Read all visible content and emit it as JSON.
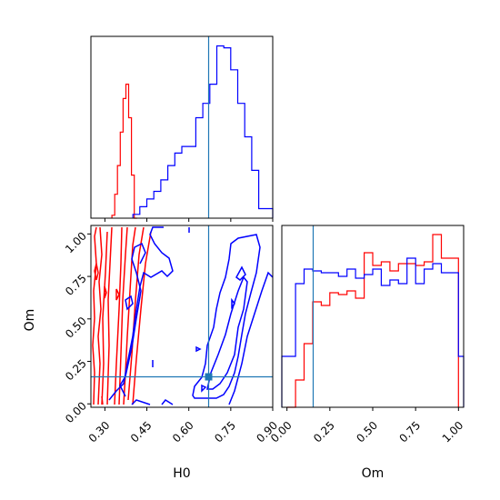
{
  "chart_data": {
    "type": "corner",
    "parameters": [
      "H0",
      "Om"
    ],
    "truth": {
      "H0": 0.665,
      "Om": 0.16
    },
    "colors": {
      "series_a": "#ff0000",
      "series_b": "#0000ff",
      "truth": "#1f77b4"
    },
    "panels": [
      {
        "id": "H0-histogram",
        "type": "step-histogram",
        "xlim": [
          0.25,
          0.9
        ],
        "series": [
          {
            "color": "#ff0000",
            "bin_edges": [
              0.325,
              0.335,
              0.345,
              0.355,
              0.365,
              0.375,
              0.385,
              0.395,
              0.405,
              0.415
            ],
            "counts": [
              3,
              25,
              55,
              90,
              125,
              140,
              105,
              45,
              0
            ]
          },
          {
            "color": "#0000ff",
            "bin_edges": [
              0.4,
              0.425,
              0.45,
              0.475,
              0.5,
              0.525,
              0.55,
              0.575,
              0.6,
              0.625,
              0.65,
              0.675,
              0.7,
              0.725,
              0.75,
              0.775,
              0.8,
              0.825,
              0.85,
              0.875,
              0.9
            ],
            "counts": [
              4,
              12,
              20,
              28,
              40,
              55,
              68,
              75,
              75,
              105,
              120,
              140,
              180,
              178,
              155,
              120,
              85,
              50,
              10,
              10
            ]
          }
        ]
      },
      {
        "id": "H0-Om-contours",
        "type": "contour",
        "xlim": [
          0.25,
          0.9
        ],
        "ylim": [
          -0.02,
          1.05
        ],
        "series": [
          {
            "color": "#ff0000",
            "region": "H0 approx 0.25-0.42, Om spanning 0-1"
          },
          {
            "color": "#0000ff",
            "region": "H0 approx 0.33-0.45 and 0.62-0.9, Om spanning 0-1"
          }
        ]
      },
      {
        "id": "Om-histogram",
        "type": "step-histogram",
        "xlim": [
          -0.03,
          1.03
        ],
        "series": [
          {
            "color": "#ff0000",
            "bin_edges": [
              0,
              0.05,
              0.1,
              0.15,
              0.2,
              0.25,
              0.3,
              0.35,
              0.4,
              0.45,
              0.5,
              0.55,
              0.6,
              0.65,
              0.7,
              0.75,
              0.8,
              0.85,
              0.9,
              0.95,
              1.0
            ],
            "counts": [
              0.0,
              0.15,
              0.35,
              0.58,
              0.56,
              0.63,
              0.62,
              0.64,
              0.6,
              0.85,
              0.78,
              0.8,
              0.75,
              0.79,
              0.79,
              0.78,
              0.8,
              0.95,
              0.82,
              0.82
            ]
          },
          {
            "color": "#0000ff",
            "bin_edges": [
              -0.03,
              0.0,
              0.05,
              0.1,
              0.15,
              0.2,
              0.25,
              0.3,
              0.35,
              0.4,
              0.45,
              0.5,
              0.55,
              0.6,
              0.65,
              0.7,
              0.75,
              0.8,
              0.85,
              0.9,
              0.95,
              1.0,
              1.03
            ],
            "counts": [
              0.28,
              0.28,
              0.68,
              0.76,
              0.75,
              0.74,
              0.74,
              0.72,
              0.76,
              0.71,
              0.73,
              0.76,
              0.67,
              0.7,
              0.68,
              0.82,
              0.68,
              0.76,
              0.79,
              0.74,
              0.74,
              0.28
            ]
          }
        ]
      }
    ],
    "xticks_H0": [
      "0.30",
      "0.45",
      "0.60",
      "0.75",
      "0.90"
    ],
    "xticks_H0_values": [
      0.3,
      0.45,
      0.6,
      0.75,
      0.9
    ],
    "xticks_Om": [
      "0.00",
      "0.25",
      "0.50",
      "0.75",
      "1.00"
    ],
    "xticks_Om_values": [
      0.0,
      0.25,
      0.5,
      0.75,
      1.0
    ],
    "yticks_Om": [
      "0.00",
      "0.25",
      "0.50",
      "0.75",
      "1.00"
    ],
    "yticks_Om_values": [
      0.0,
      0.25,
      0.5,
      0.75,
      1.0
    ],
    "xlabel_H0": "H0",
    "xlabel_Om": "Om",
    "ylabel_Om": "Om",
    "grid": false,
    "legend": "none"
  }
}
